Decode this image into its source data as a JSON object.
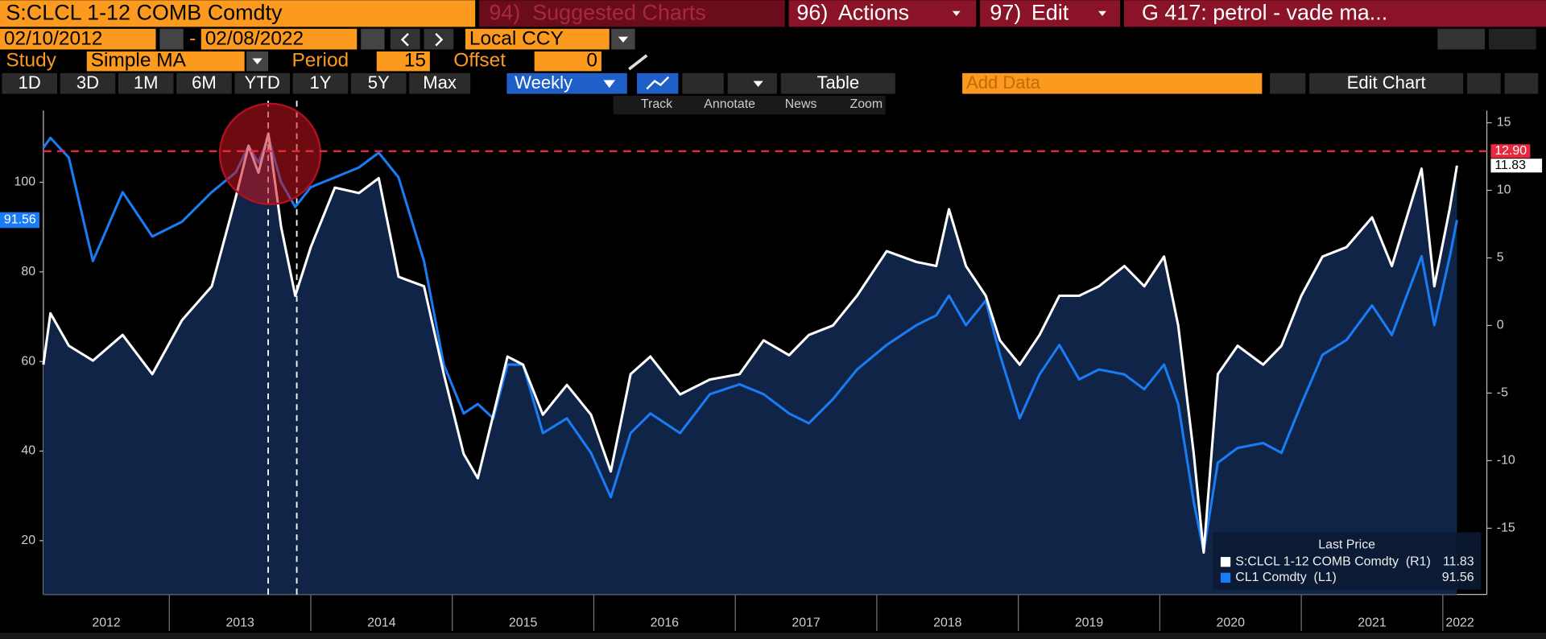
{
  "header": {
    "security": "S:CLCL 1-12 COMB Comdty",
    "menus": [
      {
        "num": "94)",
        "label": "Suggested Charts"
      },
      {
        "num": "96)",
        "label": "Actions"
      },
      {
        "num": "97)",
        "label": "Edit"
      }
    ],
    "title_box": "G 417: petrol - vade ma..."
  },
  "dates": {
    "start": "02/10/2012",
    "sep": "-",
    "end": "02/08/2022",
    "currency": "Local CCY"
  },
  "study": {
    "label": "Study",
    "value": "Simple MA",
    "period_label": "Period",
    "period": "15",
    "offset_label": "Offset",
    "offset": "0"
  },
  "toolbar": {
    "ranges": [
      "1D",
      "3D",
      "1M",
      "6M",
      "YTD",
      "1Y",
      "5Y",
      "Max"
    ],
    "frequency": "Weekly",
    "table": "Table",
    "add_data": "Add Data",
    "edit_chart": "Edit Chart"
  },
  "tools": [
    "Track",
    "Annotate",
    "News",
    "Zoom"
  ],
  "chart_data": {
    "type": "line",
    "x": [
      2012.11,
      2012.16,
      2012.29,
      2012.46,
      2012.67,
      2012.88,
      2013.09,
      2013.3,
      2013.47,
      2013.56,
      2013.63,
      2013.7,
      2013.79,
      2013.89,
      2014.0,
      2014.17,
      2014.34,
      2014.48,
      2014.62,
      2014.8,
      2014.94,
      2015.08,
      2015.18,
      2015.29,
      2015.39,
      2015.5,
      2015.64,
      2015.81,
      2015.98,
      2016.12,
      2016.26,
      2016.4,
      2016.61,
      2016.82,
      2017.03,
      2017.2,
      2017.38,
      2017.52,
      2017.69,
      2017.86,
      2018.07,
      2018.28,
      2018.42,
      2018.51,
      2018.63,
      2018.77,
      2018.87,
      2019.01,
      2019.15,
      2019.29,
      2019.43,
      2019.57,
      2019.75,
      2019.89,
      2020.03,
      2020.13,
      2020.24,
      2020.31,
      2020.41,
      2020.55,
      2020.73,
      2020.86,
      2021.0,
      2021.15,
      2021.32,
      2021.5,
      2021.64,
      2021.85,
      2021.94,
      2022.05,
      2022.1
    ],
    "xlim": [
      2012.11,
      2022.13
    ],
    "xticks": [
      2012,
      2013,
      2014,
      2015,
      2016,
      2017,
      2018,
      2019,
      2020,
      2021,
      2022
    ],
    "ylim": [
      8,
      116
    ],
    "yticks": [
      20,
      40,
      60,
      80,
      100
    ],
    "y2lim": [
      -19.9,
      15.9
    ],
    "y2ticks": [
      -15,
      -10,
      -5,
      0,
      5,
      10,
      15
    ],
    "series": [
      {
        "name": "S:CLCL 1-12 COMB Comdty  (R1)",
        "color": "#ffffff",
        "fill": "#0f2446",
        "axis": "y2",
        "values": [
          -2.9,
          0.9,
          -1.5,
          -2.6,
          -0.7,
          -3.6,
          0.4,
          2.9,
          9.5,
          13.3,
          11.3,
          14.2,
          7.3,
          2.2,
          5.8,
          10.2,
          9.8,
          10.9,
          3.6,
          2.9,
          -3.6,
          -9.5,
          -11.3,
          -6.6,
          -2.3,
          -2.9,
          -6.6,
          -4.4,
          -6.6,
          -10.8,
          -3.6,
          -2.3,
          -5.1,
          -4.0,
          -3.6,
          -1.1,
          -2.2,
          -0.7,
          0.0,
          2.2,
          5.5,
          4.7,
          4.4,
          8.6,
          4.4,
          2.2,
          -1.1,
          -2.9,
          -0.7,
          2.2,
          2.2,
          2.9,
          4.4,
          2.9,
          5.1,
          0.0,
          -9.5,
          -16.8,
          -3.6,
          -1.5,
          -2.9,
          -1.5,
          2.2,
          5.1,
          5.8,
          8.0,
          4.4,
          11.6,
          2.9,
          8.7,
          11.83
        ]
      },
      {
        "name": "CL1 Comdty  (L1)",
        "color": "#1a7cf5",
        "values": [
          107.7,
          109.9,
          105.5,
          82.4,
          97.8,
          87.9,
          91.2,
          97.8,
          102.2,
          108.1,
          104.4,
          110.1,
          100,
          94.5,
          98.9,
          101.1,
          103.3,
          106.6,
          101.1,
          82.4,
          59.3,
          48.4,
          50.5,
          47.3,
          59.3,
          59.3,
          44,
          47.3,
          39.6,
          29.7,
          44,
          48.4,
          44,
          52.7,
          54.9,
          52.7,
          48.4,
          46.2,
          51.6,
          58.2,
          63.7,
          68.1,
          70.3,
          74.7,
          68.1,
          73.6,
          61.5,
          47.3,
          57.1,
          63.7,
          56,
          58.2,
          57.1,
          53.8,
          59.3,
          50.5,
          28.6,
          17.6,
          37.4,
          40.7,
          41.8,
          39.6,
          50.5,
          61.5,
          64.8,
          72.5,
          65.9,
          83.5,
          68.1,
          83.5,
          91.56
        ]
      }
    ],
    "hline": {
      "value": 12.9,
      "label": "12.90",
      "axis": "y2",
      "color": "#e8283c"
    },
    "legend_title": "Last Price"
  }
}
